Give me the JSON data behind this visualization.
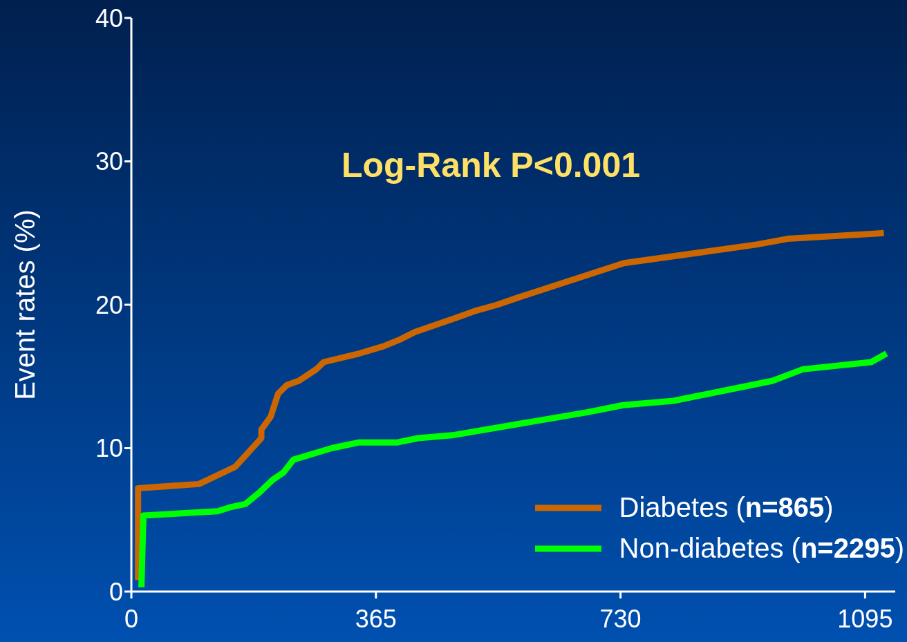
{
  "chart_data": {
    "type": "line",
    "ylabel": "Event rates (%)",
    "annotations": [
      "Log-Rank P<0.001"
    ],
    "xlim": [
      0,
      1140
    ],
    "xticks": [
      0,
      365,
      730,
      1095
    ],
    "ylim": [
      0,
      40
    ],
    "yticks": [
      0,
      10,
      20,
      30,
      40
    ],
    "grid": false,
    "legend": "bottom right",
    "series": [
      {
        "name": "Diabetes (n=865)",
        "color": "#cc6600",
        "x": [
          10,
          10,
          101,
          155,
          194,
          194,
          208,
          219,
          232,
          250,
          276,
          287,
          340,
          376,
          402,
          423,
          485,
          515,
          546,
          577,
          735,
          933,
          979,
          1123
        ],
        "values": [
          0.8,
          7.2,
          7.5,
          8.7,
          10.7,
          11.3,
          12.2,
          13.8,
          14.4,
          14.7,
          15.5,
          16.0,
          16.6,
          17.1,
          17.6,
          18.1,
          19.1,
          19.6,
          20.0,
          20.5,
          22.9,
          24.2,
          24.6,
          25.0
        ]
      },
      {
        "name": "Non-diabetes (n=2295)",
        "color": "#00ff00",
        "x": [
          15,
          18,
          129,
          149,
          170,
          191,
          211,
          227,
          242,
          299,
          340,
          397,
          428,
          479,
          680,
          734,
          809,
          957,
          1002,
          1104,
          1127
        ],
        "values": [
          0.3,
          5.3,
          5.6,
          5.9,
          6.1,
          6.9,
          7.8,
          8.3,
          9.2,
          10.0,
          10.4,
          10.4,
          10.7,
          10.9,
          12.5,
          13.0,
          13.3,
          14.7,
          15.5,
          16.0,
          16.6
        ]
      }
    ]
  }
}
